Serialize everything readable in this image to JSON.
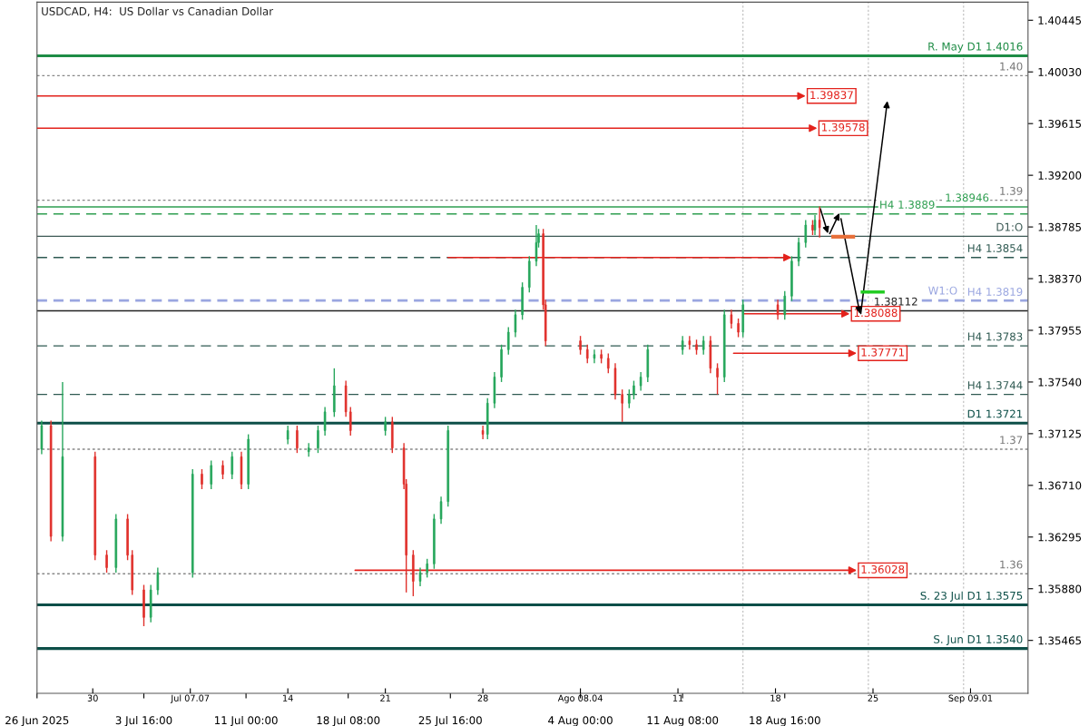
{
  "chart_data": {
    "type": "candlestick",
    "title": "USDCAD, H4:  US Dollar vs Canadian Dollar",
    "x": [
      "2025-06-26T08:00",
      "2025-06-27T00:00",
      "2025-06-27T20:00",
      "2025-06-30T04:00",
      "2025-07-01T00:00",
      "2025-07-01T16:00",
      "2025-07-02T12:00",
      "2025-07-02T20:00",
      "2025-07-03T16:00",
      "2025-07-04T04:00",
      "2025-07-04T16:00",
      "2025-07-07T04:00",
      "2025-07-07T20:00",
      "2025-07-08T12:00",
      "2025-07-09T08:00",
      "2025-07-10T00:00",
      "2025-07-10T16:00",
      "2025-07-11T04:00",
      "2025-07-14T00:00",
      "2025-07-14T16:00",
      "2025-07-15T12:00",
      "2025-07-16T04:00",
      "2025-07-16T16:00",
      "2025-07-17T08:00",
      "2025-07-18T04:00",
      "2025-07-18T12:00",
      "2025-07-21T00:00",
      "2025-07-21T12:00",
      "2025-07-22T08:00",
      "2025-07-22T12:00",
      "2025-07-23T00:00",
      "2025-07-23T12:00",
      "2025-07-24T00:00",
      "2025-07-24T12:00",
      "2025-07-25T00:00",
      "2025-07-25T12:00",
      "2025-07-28T00:00",
      "2025-07-28T08:00",
      "2025-07-28T20:00",
      "2025-07-29T08:00",
      "2025-07-29T20:00",
      "2025-07-30T08:00",
      "2025-07-30T20:00",
      "2025-07-31T08:00",
      "2025-07-31T20:00",
      "2025-08-01T00:00",
      "2025-08-01T08:00",
      "2025-08-01T12:00",
      "2025-08-04T00:00",
      "2025-08-04T12:00",
      "2025-08-05T00:00",
      "2025-08-05T12:00",
      "2025-08-06T00:00",
      "2025-08-06T12:00",
      "2025-08-07T00:00",
      "2025-08-07T12:00",
      "2025-08-07T20:00",
      "2025-08-08T08:00",
      "2025-08-08T20:00",
      "2025-08-11T08:00",
      "2025-08-11T20:00",
      "2025-08-12T08:00",
      "2025-08-12T20:00",
      "2025-08-13T08:00",
      "2025-08-13T20:00",
      "2025-08-14T08:00",
      "2025-08-14T20:00",
      "2025-08-15T08:00",
      "2025-08-15T16:00",
      "2025-08-18T04:00",
      "2025-08-18T16:00",
      "2025-08-19T04:00",
      "2025-08-19T16:00",
      "2025-08-20T04:00",
      "2025-08-20T16:00",
      "2025-08-20T20:00",
      "2025-08-21T04:00"
    ],
    "ohlc": [
      [
        1.37,
        1.3723,
        1.3696,
        1.3719
      ],
      [
        1.3719,
        1.3723,
        1.3626,
        1.363
      ],
      [
        1.363,
        1.3754,
        1.3626,
        1.3694
      ],
      [
        1.3694,
        1.3698,
        1.3611,
        1.3615
      ],
      [
        1.3615,
        1.3619,
        1.3601,
        1.3605
      ],
      [
        1.3605,
        1.3648,
        1.3601,
        1.3644
      ],
      [
        1.3644,
        1.3648,
        1.3611,
        1.3615
      ],
      [
        1.3615,
        1.3619,
        1.3583,
        1.3587
      ],
      [
        1.3587,
        1.3591,
        1.3558,
        1.3565
      ],
      [
        1.3565,
        1.3591,
        1.3561,
        1.3587
      ],
      [
        1.3587,
        1.3605,
        1.3583,
        1.3601
      ],
      [
        1.3601,
        1.3684,
        1.3597,
        1.368
      ],
      [
        1.368,
        1.3684,
        1.3668,
        1.3672
      ],
      [
        1.3672,
        1.3691,
        1.3668,
        1.3687
      ],
      [
        1.3687,
        1.3691,
        1.3676,
        1.368
      ],
      [
        1.368,
        1.3698,
        1.3676,
        1.3694
      ],
      [
        1.3694,
        1.3698,
        1.3668,
        1.3672
      ],
      [
        1.3672,
        1.3712,
        1.3668,
        1.3708
      ],
      [
        1.3708,
        1.3719,
        1.3704,
        1.3715
      ],
      [
        1.3715,
        1.3719,
        1.3697,
        1.3701
      ],
      [
        1.3698,
        1.3705,
        1.3694,
        1.3701
      ],
      [
        1.3701,
        1.3719,
        1.3697,
        1.3715
      ],
      [
        1.3715,
        1.3734,
        1.3711,
        1.373
      ],
      [
        1.373,
        1.3765,
        1.3726,
        1.3751
      ],
      [
        1.3751,
        1.3755,
        1.3726,
        1.373
      ],
      [
        1.373,
        1.3734,
        1.3711,
        1.3715
      ],
      [
        1.3715,
        1.3726,
        1.3711,
        1.3722
      ],
      [
        1.3722,
        1.3726,
        1.3697,
        1.3701
      ],
      [
        1.3701,
        1.3705,
        1.3668,
        1.3672
      ],
      [
        1.3672,
        1.3676,
        1.3585,
        1.3615
      ],
      [
        1.3615,
        1.3619,
        1.3582,
        1.3594
      ],
      [
        1.3594,
        1.3605,
        1.359,
        1.3601
      ],
      [
        1.3601,
        1.3612,
        1.3597,
        1.3608
      ],
      [
        1.3608,
        1.3648,
        1.3604,
        1.3644
      ],
      [
        1.3644,
        1.3662,
        1.364,
        1.3658
      ],
      [
        1.3658,
        1.3719,
        1.3654,
        1.3715
      ],
      [
        1.3715,
        1.3719,
        1.3708,
        1.3712
      ],
      [
        1.3712,
        1.3741,
        1.3708,
        1.3737
      ],
      [
        1.3737,
        1.3762,
        1.3733,
        1.3758
      ],
      [
        1.3758,
        1.3784,
        1.3754,
        1.378
      ],
      [
        1.378,
        1.3798,
        1.3776,
        1.3794
      ],
      [
        1.3794,
        1.3812,
        1.379,
        1.3808
      ],
      [
        1.3808,
        1.3834,
        1.3804,
        1.383
      ],
      [
        1.383,
        1.3855,
        1.3826,
        1.3851
      ],
      [
        1.3851,
        1.388,
        1.3847,
        1.3866
      ],
      [
        1.3866,
        1.3877,
        1.3862,
        1.3873
      ],
      [
        1.3873,
        1.3877,
        1.3812,
        1.3816
      ],
      [
        1.3816,
        1.382,
        1.3783,
        1.3787
      ],
      [
        1.3787,
        1.3791,
        1.3776,
        1.378
      ],
      [
        1.378,
        1.3784,
        1.3769,
        1.3773
      ],
      [
        1.3773,
        1.378,
        1.3769,
        1.3776
      ],
      [
        1.3776,
        1.378,
        1.3769,
        1.3773
      ],
      [
        1.3773,
        1.3777,
        1.3761,
        1.3765
      ],
      [
        1.3765,
        1.3769,
        1.374,
        1.3744
      ],
      [
        1.3744,
        1.3748,
        1.3722,
        1.3737
      ],
      [
        1.3737,
        1.3748,
        1.3733,
        1.3744
      ],
      [
        1.3744,
        1.3755,
        1.374,
        1.3751
      ],
      [
        1.3751,
        1.3762,
        1.3747,
        1.3758
      ],
      [
        1.3758,
        1.3784,
        1.3754,
        1.378
      ],
      [
        1.378,
        1.3791,
        1.3776,
        1.3787
      ],
      [
        1.3787,
        1.3791,
        1.378,
        1.3784
      ],
      [
        1.3784,
        1.3788,
        1.3776,
        1.378
      ],
      [
        1.378,
        1.3791,
        1.3776,
        1.3787
      ],
      [
        1.3787,
        1.3791,
        1.3761,
        1.3765
      ],
      [
        1.3765,
        1.3769,
        1.3744,
        1.3758
      ],
      [
        1.3758,
        1.3812,
        1.3754,
        1.3808
      ],
      [
        1.3808,
        1.3812,
        1.3797,
        1.3801
      ],
      [
        1.3801,
        1.3805,
        1.379,
        1.3794
      ],
      [
        1.3794,
        1.382,
        1.379,
        1.3816
      ],
      [
        1.3816,
        1.382,
        1.3804,
        1.3808
      ],
      [
        1.3808,
        1.3827,
        1.3804,
        1.3823
      ],
      [
        1.3823,
        1.3855,
        1.3819,
        1.3851
      ],
      [
        1.3851,
        1.387,
        1.3847,
        1.3866
      ],
      [
        1.3866,
        1.3884,
        1.3862,
        1.388
      ],
      [
        1.388,
        1.3884,
        1.3872,
        1.3876
      ],
      [
        1.3876,
        1.3888,
        1.3872,
        1.3884
      ],
      [
        1.3884,
        1.3895,
        1.387,
        1.3878
      ]
    ],
    "series": [
      {
        "type": "line",
        "color": "#e3221c",
        "x": [
          "2025-06-26T00:00",
          "2025-08-20T04:00"
        ],
        "values": [
          1.39837,
          1.39837
        ]
      },
      {
        "type": "line",
        "color": "#e3221c",
        "x": [
          "2025-06-26T00:00",
          "2025-08-21T00:00"
        ],
        "values": [
          1.39578,
          1.39578
        ]
      },
      {
        "type": "line",
        "color": "#e3221c",
        "x": [
          "2025-07-25T12:00",
          "2025-08-19T04:00"
        ],
        "values": [
          1.3854,
          1.3854
        ]
      },
      {
        "type": "line",
        "color": "#e3221c",
        "x": [
          "2025-08-15T16:00",
          "2025-08-23T08:00"
        ],
        "values": [
          1.38088,
          1.38088
        ]
      },
      {
        "type": "line",
        "color": "#e3221c",
        "x": [
          "2025-08-15T00:00",
          "2025-08-23T20:00"
        ],
        "values": [
          1.37771,
          1.37771
        ]
      },
      {
        "type": "line",
        "color": "#e3221c",
        "x": [
          "2025-07-18T20:00",
          "2025-08-23T20:00"
        ],
        "values": [
          1.36028,
          1.36028
        ]
      }
    ],
    "annotations": [
      {
        "text": "1.39837",
        "x": "2025-08-20T04:00",
        "y": 1.39837
      },
      {
        "text": "1.39578",
        "x": "2025-08-21T00:00",
        "y": 1.39578
      },
      {
        "text": "1.38088",
        "x": "2025-08-23T08:00",
        "y": 1.38088
      },
      {
        "text": "1.37771",
        "x": "2025-08-23T20:00",
        "y": 1.37771
      },
      {
        "text": "1.36028",
        "x": "2025-08-23T20:00",
        "y": 1.36028
      }
    ],
    "ref_lines": [
      {
        "axis": "y",
        "value": 1.4016,
        "label": "R. May D1 1.4016",
        "color": "#1e8c45",
        "line_style": "solid"
      },
      {
        "axis": "y",
        "value": 1.4,
        "label": "1.40",
        "color": "#888888",
        "line_style": "dotted"
      },
      {
        "axis": "y",
        "value": 1.39,
        "label": "1.39",
        "color": "#888888",
        "line_style": "dotted"
      },
      {
        "axis": "y",
        "value": 1.38946,
        "label": "1.38946",
        "color": "#2e9e50",
        "line_style": "solid"
      },
      {
        "axis": "y",
        "value": 1.3889,
        "label": "H4 1.3889",
        "color": "#2e9e50",
        "line_style": "dashed"
      },
      {
        "axis": "y",
        "value": 1.3871,
        "label": "D1:O",
        "color": "#3c5a55",
        "line_style": "solid"
      },
      {
        "axis": "y",
        "value": 1.3854,
        "label": "H4 1.3854",
        "color": "#2f5a52",
        "line_style": "dashed"
      },
      {
        "axis": "y",
        "value": 1.3819,
        "label": "H4 1.3819",
        "color": "#9aa6e0",
        "line_style": "dashed"
      },
      {
        "axis": "y",
        "value": 1.382,
        "label": "W1:O",
        "color": "#9aa6e0",
        "line_style": "dashed"
      },
      {
        "axis": "y",
        "value": 1.38112,
        "label": "1.38112",
        "color": "#222222",
        "line_style": "solid"
      },
      {
        "axis": "y",
        "value": 1.3783,
        "label": "H4 1.3783",
        "color": "#2f5a52",
        "line_style": "dashed"
      },
      {
        "axis": "y",
        "value": 1.3744,
        "label": "H4 1.3744",
        "color": "#2f5a52",
        "line_style": "dashed"
      },
      {
        "axis": "y",
        "value": 1.3721,
        "label": "D1 1.3721",
        "color": "#0d4f48",
        "line_style": "solid"
      },
      {
        "axis": "y",
        "value": 1.37,
        "label": "1.37",
        "color": "#888888",
        "line_style": "dotted"
      },
      {
        "axis": "y",
        "value": 1.36,
        "label": "1.36",
        "color": "#888888",
        "line_style": "dotted"
      },
      {
        "axis": "y",
        "value": 1.3575,
        "label": "S. 23 Jul D1 1.3575",
        "color": "#0d4f48",
        "line_style": "solid"
      },
      {
        "axis": "y",
        "value": 1.354,
        "label": "S. Jun D1 1.3540",
        "color": "#0d4f48",
        "line_style": "solid"
      },
      {
        "axis": "x",
        "value": "2025-08-15T16:00",
        "color": "#bbbbbb",
        "line_style": "dotted"
      },
      {
        "axis": "x",
        "value": "2025-08-24T16:00",
        "color": "#bbbbbb",
        "line_style": "dotted"
      },
      {
        "axis": "x",
        "value": "2025-08-31T12:00",
        "color": "#bbbbbb",
        "line_style": "dotted"
      }
    ],
    "xlim": [
      "2025-06-26T00:00",
      "2025-09-05T03:00"
    ],
    "x2lim": [
      "2025-06-26T00:00",
      "2025-09-05T03:00"
    ],
    "ylim": [
      1.3504,
      1.4059
    ],
    "xticks": [
      {
        "value": "2025-06-26T00:00",
        "label": "26 Jun 2025"
      },
      {
        "value": "2025-07-03T16:00",
        "label": "3 Jul 16:00"
      },
      {
        "value": "2025-07-11T00:00",
        "label": "11 Jul 00:00"
      },
      {
        "value": "2025-07-18T08:00",
        "label": "18 Jul 08:00"
      },
      {
        "value": "2025-07-25T16:00",
        "label": "25 Jul 16:00"
      },
      {
        "value": "2025-08-04T00:00",
        "label": "4 Aug 00:00"
      },
      {
        "value": "2025-08-11T08:00",
        "label": "11 Aug 08:00"
      },
      {
        "value": "2025-08-18T16:00",
        "label": "18 Aug 16:00"
      }
    ],
    "x2ticks": [
      {
        "value": "2025-06-30",
        "label": "30"
      },
      {
        "value": "2025-07-07",
        "label": "Jul 07.07"
      },
      {
        "value": "2025-07-14",
        "label": "14"
      },
      {
        "value": "2025-07-21",
        "label": "21"
      },
      {
        "value": "2025-07-28",
        "label": "28"
      },
      {
        "value": "2025-08-04",
        "label": "Ago 08.04"
      },
      {
        "value": "2025-08-11",
        "label": "11"
      },
      {
        "value": "2025-08-18",
        "label": "18"
      },
      {
        "value": "2025-08-25",
        "label": "25"
      },
      {
        "value": "2025-09-01",
        "label": "Sep 09.01"
      }
    ],
    "yticks": [
      {
        "value": 1.40445,
        "label": "1.40445"
      },
      {
        "value": 1.4003,
        "label": "1.40030"
      },
      {
        "value": 1.39615,
        "label": "1.39615"
      },
      {
        "value": 1.392,
        "label": "1.39200"
      },
      {
        "value": 1.38785,
        "label": "1.38785"
      },
      {
        "value": 1.3837,
        "label": "1.38370"
      },
      {
        "value": 1.37955,
        "label": "1.37955"
      },
      {
        "value": 1.3754,
        "label": "1.37540"
      },
      {
        "value": 1.37125,
        "label": "1.37125"
      },
      {
        "value": 1.3671,
        "label": "1.36710"
      },
      {
        "value": 1.36295,
        "label": "1.36295"
      },
      {
        "value": 1.3588,
        "label": "1.35880"
      },
      {
        "value": 1.35465,
        "label": "1.35465"
      }
    ]
  }
}
